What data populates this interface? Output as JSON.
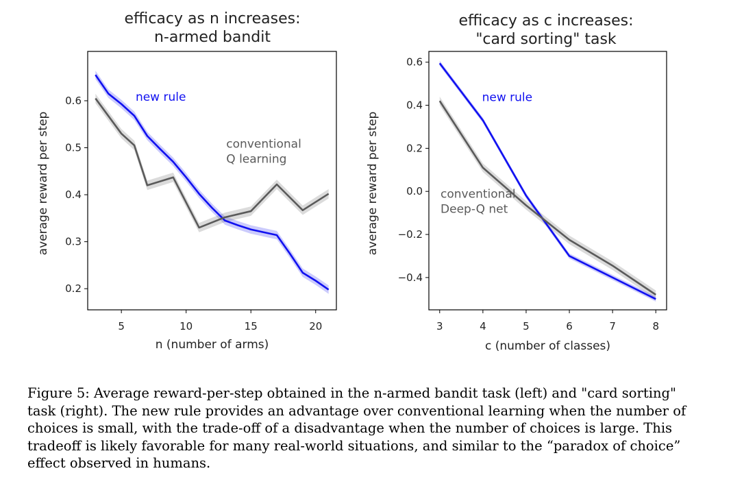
{
  "chart_data": [
    {
      "type": "line",
      "title": "efficacy as n increases:\nn-armed bandit",
      "xlabel": "n (number of arms)",
      "ylabel": "average reward per step",
      "xlim": [
        2.4,
        21.6
      ],
      "ylim": [
        0.155,
        0.705
      ],
      "xticks": [
        5,
        10,
        15,
        20
      ],
      "yticks": [
        0.2,
        0.3,
        0.4,
        0.5,
        0.6
      ],
      "grid": false,
      "series": [
        {
          "name": "new rule",
          "color": "#1010f0",
          "x": [
            3,
            4,
            5,
            6,
            7,
            8,
            9,
            10,
            11,
            12,
            13,
            14,
            15,
            16,
            17,
            18,
            19,
            20,
            21
          ],
          "y": [
            0.655,
            0.615,
            0.593,
            0.568,
            0.525,
            0.497,
            0.47,
            0.437,
            0.402,
            0.372,
            0.345,
            0.335,
            0.326,
            0.32,
            0.314,
            0.275,
            0.234,
            0.217,
            0.198
          ],
          "band": 0.009
        },
        {
          "name": "conventional\nQ learning",
          "color": "#5a5a5a",
          "x": [
            3,
            5,
            6,
            7,
            9,
            11,
            13,
            15,
            17,
            19,
            21
          ],
          "y": [
            0.605,
            0.53,
            0.505,
            0.42,
            0.437,
            0.33,
            0.352,
            0.365,
            0.422,
            0.367,
            0.402
          ],
          "band": 0.01
        }
      ],
      "annotations": [
        {
          "text": "new rule",
          "x": 6.1,
          "y": 0.6,
          "color": "#1010f0"
        },
        {
          "text": "conventional\nQ learning",
          "x": 13.1,
          "y": 0.5,
          "color": "#5a5a5a"
        }
      ]
    },
    {
      "type": "line",
      "title": "efficacy as c increases:\n\"card sorting\" task",
      "xlabel": "c (number of classes)",
      "ylabel": "average reward per step",
      "xlim": [
        2.75,
        8.25
      ],
      "ylim": [
        -0.55,
        0.65
      ],
      "xticks": [
        3,
        4,
        5,
        6,
        7,
        8
      ],
      "yticks": [
        -0.4,
        -0.2,
        0.0,
        0.2,
        0.4,
        0.6
      ],
      "grid": false,
      "series": [
        {
          "name": "new rule",
          "color": "#1010f0",
          "x": [
            3,
            4,
            5,
            6,
            7,
            8
          ],
          "y": [
            0.595,
            0.33,
            -0.02,
            -0.3,
            -0.4,
            -0.5
          ],
          "band": 0.012
        },
        {
          "name": "conventional\nDeep-Q net",
          "color": "#5a5a5a",
          "x": [
            3,
            4,
            5,
            6,
            7,
            8
          ],
          "y": [
            0.42,
            0.11,
            -0.065,
            -0.225,
            -0.345,
            -0.48
          ],
          "band": 0.02
        }
      ],
      "annotations": [
        {
          "text": "new rule",
          "x": 3.98,
          "y": 0.42,
          "color": "#1010f0"
        },
        {
          "text": "conventional\nDeep-Q net",
          "x": 3.02,
          "y": -0.03,
          "color": "#5a5a5a"
        }
      ]
    }
  ],
  "caption": "Figure 5:  Average reward-per-step obtained in the n-armed bandit task (left) and \"card sorting\" task (right). The new rule provides an advantage over conventional learning when the number of choices is small, with the trade-off of a disadvantage when the number of choices is large. This tradeoff is likely favorable for many real-world situations, and similar to the “paradox of choice” effect observed in humans."
}
